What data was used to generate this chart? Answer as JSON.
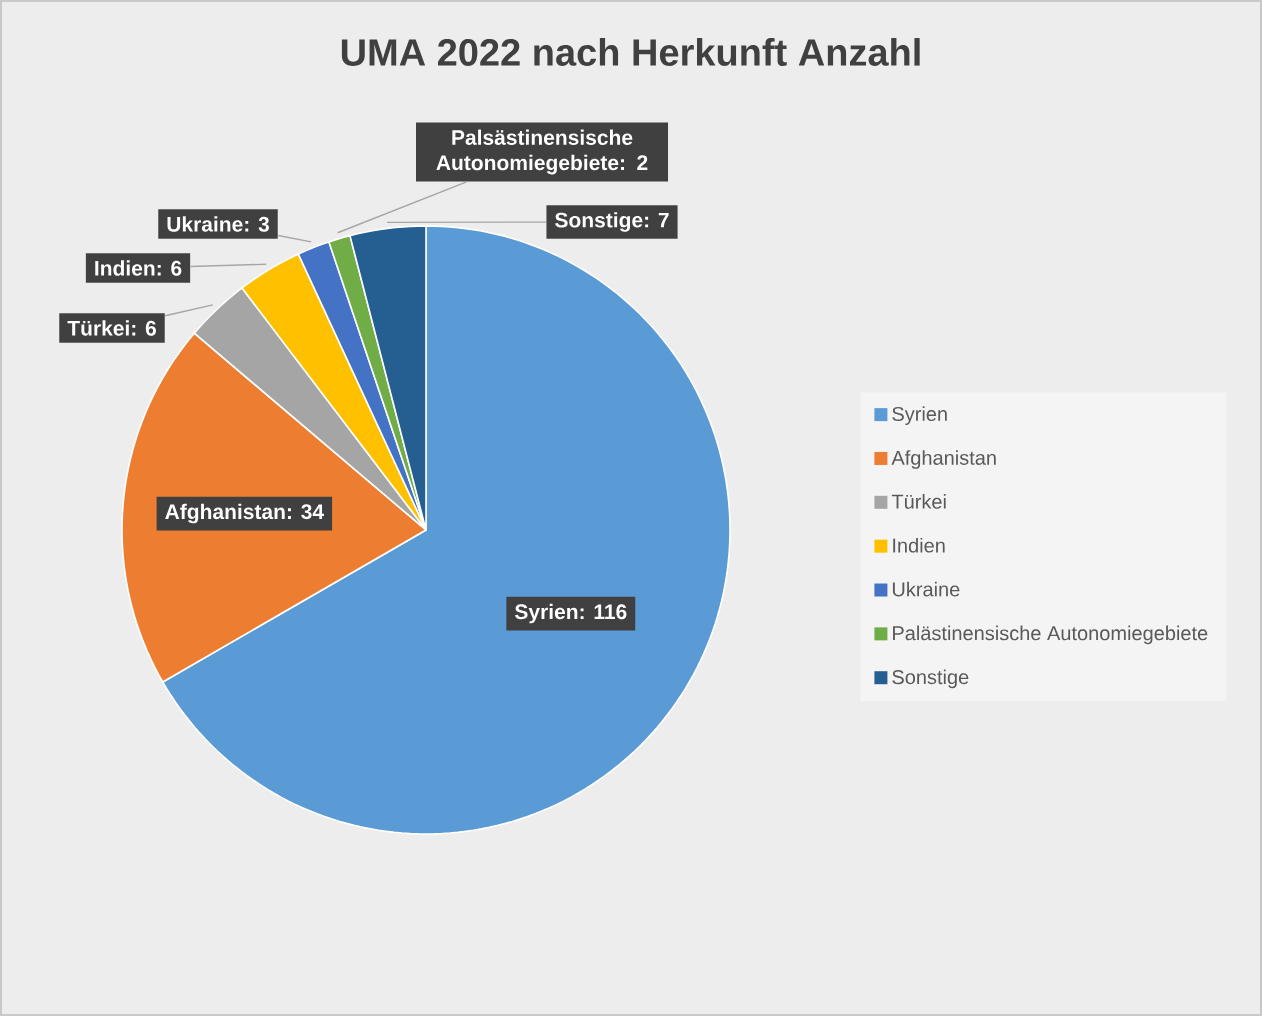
{
  "chart_data": {
    "type": "pie",
    "title": "UMA 2022 nach Herkunft Anzahl",
    "categories": [
      "Syrien",
      "Afghanistan",
      "Türkei",
      "Indien",
      "Ukraine",
      "Palästinensische Autonomiegebiete",
      "Sonstige"
    ],
    "values": [
      116,
      34,
      6,
      6,
      3,
      2,
      7
    ],
    "colors": [
      "#5b9bd5",
      "#ed7d31",
      "#a5a5a5",
      "#ffc000",
      "#4472c4",
      "#70ad47",
      "#255e91"
    ],
    "value_labels": [
      "Syrien: 116",
      "Afghanistan: 34",
      "Türkei: 6",
      "Indien: 6",
      "Ukraine: 3",
      "Palsästinensische Autonomiegebiete: 2",
      "Sonstige: 7"
    ],
    "legend": "right"
  }
}
